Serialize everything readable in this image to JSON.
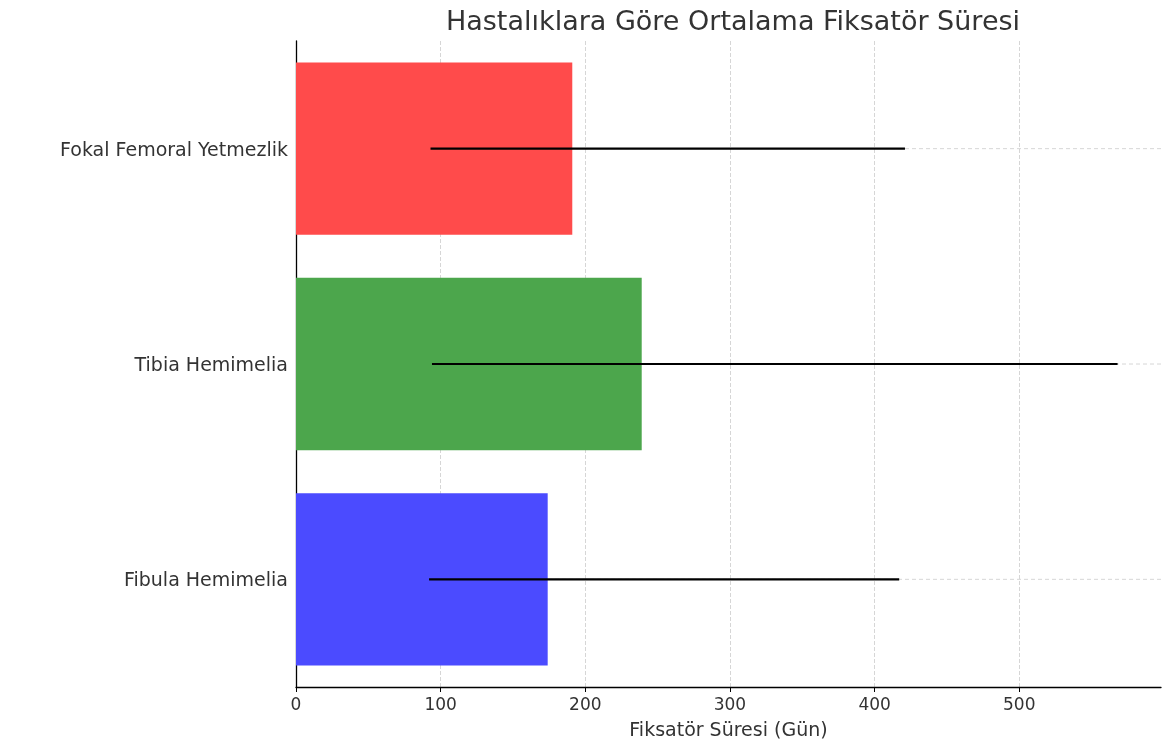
{
  "chart_data": {
    "type": "bar",
    "orientation": "horizontal",
    "title": "Hastalıklara Göre Ortalama Fiksatör Süresi",
    "xlabel": "Fiksatör Süresi (Gün)",
    "categories": [
      "Fokal Femoral Yetmezlik",
      "Tibia Hemimelia",
      "Fibula Hemimelia"
    ],
    "values": [
      191,
      239,
      174
    ],
    "colors": [
      "#ff4b4b",
      "#4ca64c",
      "#4b4bff"
    ],
    "errors": [
      [
        93,
        421
      ],
      [
        94,
        568
      ],
      [
        92,
        417
      ]
    ],
    "xlim": [
      0,
      598
    ],
    "xticks": [
      0,
      100,
      200,
      300,
      400,
      500
    ],
    "grid": true
  }
}
